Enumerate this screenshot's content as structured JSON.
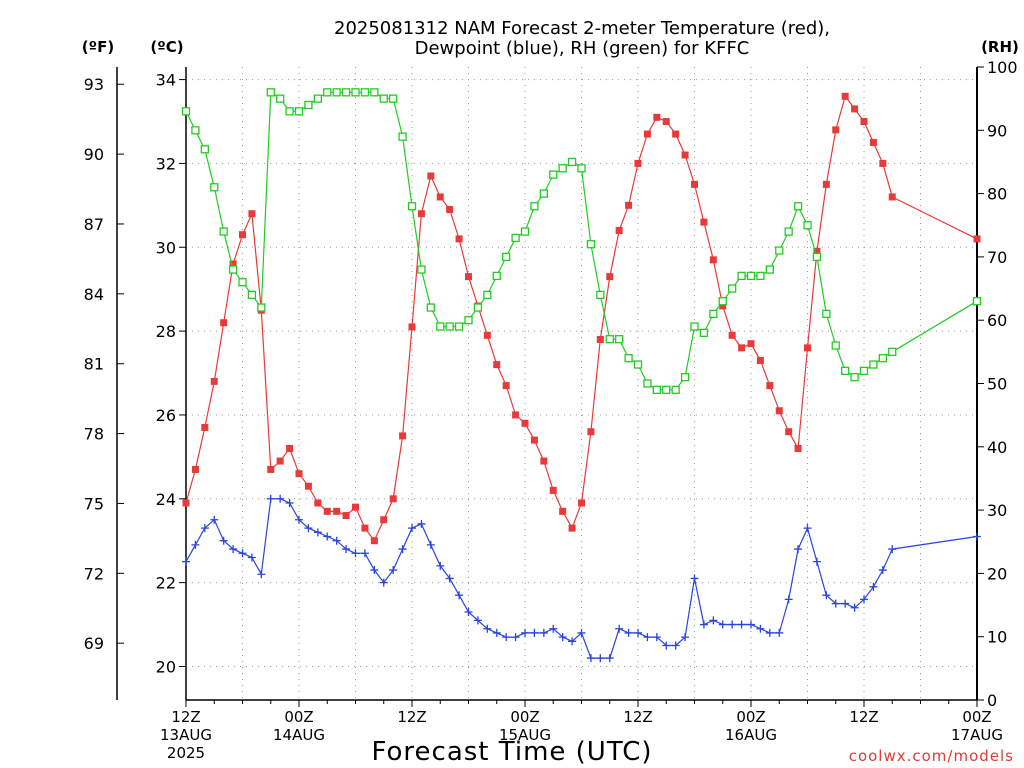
{
  "title_line1": "2025081312 NAM Forecast 2-meter Temperature (red),",
  "title_line2": "Dewpoint (blue), RH (green) for KFFC",
  "units": {
    "f": "(ºF)",
    "c": "(ºC)",
    "rh": "(RH)"
  },
  "x_title": "Forecast Time (UTC)",
  "credit": "coolwx.com/models",
  "colors": {
    "temperature": "#e83a3a",
    "dewpoint": "#2a44e0",
    "rh": "#22cc22",
    "grid": "#999999"
  },
  "chart_data": {
    "type": "line",
    "x_unit": "forecast hour from 2025-08-13 12Z",
    "x_ticks": [
      {
        "hour": 0,
        "line1": "12Z",
        "line2": "13AUG",
        "line3": "2025"
      },
      {
        "hour": 12,
        "line1": "00Z",
        "line2": "14AUG",
        "line3": ""
      },
      {
        "hour": 24,
        "line1": "12Z",
        "line2": "",
        "line3": ""
      },
      {
        "hour": 36,
        "line1": "00Z",
        "line2": "15AUG",
        "line3": ""
      },
      {
        "hour": 48,
        "line1": "12Z",
        "line2": "",
        "line3": ""
      },
      {
        "hour": 60,
        "line1": "00Z",
        "line2": "16AUG",
        "line3": ""
      },
      {
        "hour": 72,
        "line1": "12Z",
        "line2": "",
        "line3": ""
      },
      {
        "hour": 84,
        "line1": "00Z",
        "line2": "17AUG",
        "line3": ""
      }
    ],
    "xlim": [
      0,
      84
    ],
    "ylim_c": [
      19.2,
      34.3
    ],
    "ylim_rh": [
      0,
      100
    ],
    "y_ticks_c": [
      20,
      22,
      24,
      26,
      28,
      30,
      32,
      34
    ],
    "y_ticks_f": [
      69,
      72,
      75,
      78,
      81,
      84,
      87,
      90,
      93
    ],
    "y_ticks_rh": [
      0,
      10,
      20,
      30,
      40,
      50,
      60,
      70,
      80,
      90,
      100
    ],
    "grid": true,
    "series": [
      {
        "name": "Temperature",
        "key": "temperature",
        "unit": "C",
        "marker": "filled-square",
        "values": [
          23.9,
          24.7,
          25.7,
          26.8,
          28.2,
          29.6,
          30.3,
          30.8,
          28.5,
          24.7,
          24.9,
          25.2,
          24.6,
          24.3,
          23.9,
          23.7,
          23.7,
          23.6,
          23.8,
          23.3,
          23.0,
          23.5,
          24.0,
          25.5,
          28.1,
          30.8,
          31.7,
          31.2,
          30.9,
          30.2,
          29.3,
          28.6,
          27.9,
          27.2,
          26.7,
          26.0,
          25.8,
          25.4,
          24.9,
          24.2,
          23.7,
          23.3,
          23.9,
          25.6,
          27.8,
          29.3,
          30.4,
          31.0,
          32.0,
          32.7,
          33.1,
          33.0,
          32.7,
          32.2,
          31.5,
          30.6,
          29.7,
          28.6,
          27.9,
          27.6,
          27.7,
          27.3,
          26.7,
          26.1,
          25.6,
          25.2,
          27.6,
          29.9,
          31.5,
          32.8,
          33.6,
          33.3,
          33.0,
          32.5,
          32.0,
          31.2
        ],
        "last_value": 30.2
      },
      {
        "name": "Dewpoint",
        "key": "dewpoint",
        "unit": "C",
        "marker": "plus",
        "values": [
          22.5,
          22.9,
          23.3,
          23.5,
          23.0,
          22.8,
          22.7,
          22.6,
          22.2,
          24.0,
          24.0,
          23.9,
          23.5,
          23.3,
          23.2,
          23.1,
          23.0,
          22.8,
          22.7,
          22.7,
          22.3,
          22.0,
          22.3,
          22.8,
          23.3,
          23.4,
          22.9,
          22.4,
          22.1,
          21.7,
          21.3,
          21.1,
          20.9,
          20.8,
          20.7,
          20.7,
          20.8,
          20.8,
          20.8,
          20.9,
          20.7,
          20.6,
          20.8,
          20.2,
          20.2,
          20.2,
          20.9,
          20.8,
          20.8,
          20.7,
          20.7,
          20.5,
          20.5,
          20.7,
          22.1,
          21.0,
          21.1,
          21.0,
          21.0,
          21.0,
          21.0,
          20.9,
          20.8,
          20.8,
          21.6,
          22.8,
          23.3,
          22.5,
          21.7,
          21.5,
          21.5,
          21.4,
          21.6,
          21.9,
          22.3,
          22.8
        ],
        "last_value": 23.1
      },
      {
        "name": "RH",
        "key": "rh",
        "unit": "%",
        "marker": "open-square",
        "values": [
          93,
          90,
          87,
          81,
          74,
          68,
          66,
          64,
          62,
          96,
          95,
          93,
          93,
          94,
          95,
          96,
          96,
          96,
          96,
          96,
          96,
          95,
          95,
          89,
          78,
          68,
          62,
          59,
          59,
          59,
          60,
          62,
          64,
          67,
          70,
          73,
          74,
          78,
          80,
          83,
          84,
          85,
          84,
          72,
          64,
          57,
          57,
          54,
          53,
          50,
          49,
          49,
          49,
          51,
          59,
          58,
          61,
          63,
          65,
          67,
          67,
          67,
          68,
          71,
          74,
          78,
          75,
          70,
          61,
          56,
          52,
          51,
          52,
          53,
          54,
          55
        ],
        "last_value": 63
      }
    ]
  }
}
